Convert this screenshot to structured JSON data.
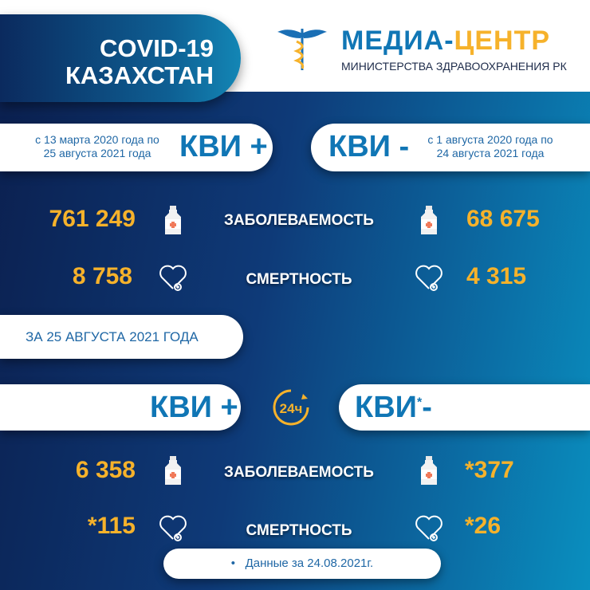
{
  "header": {
    "line1": "COVID-19",
    "line2": "КАЗАХСТАН"
  },
  "logo": {
    "title_part1": "МЕДИА-",
    "title_part2": "ЦЕНТР",
    "subtitle": "МИНИСТЕРСТВА ЗДРАВООХРАНЕНИЯ РК"
  },
  "cumulative": {
    "left": {
      "period_line1": "с 13 марта 2020 года по",
      "period_line2": "25 августа 2021 года",
      "label": "КВИ +"
    },
    "right": {
      "label": "КВИ -",
      "period_line1": "с 1 августа 2020 года по",
      "period_line2": "24 августа 2021 года"
    },
    "incidence_label": "ЗАБОЛЕВАЕМОСТЬ",
    "mortality_label": "СМЕРТНОСТЬ",
    "incidence_left": "761 249",
    "incidence_right": "68 675",
    "mortality_left": "8 758",
    "mortality_right": "4 315"
  },
  "daily": {
    "date_label": "ЗА 25 АВГУСТА 2021 ГОДА",
    "left_label": "КВИ +",
    "right_label": "КВИ",
    "right_sign": "-",
    "right_asterisk": "*",
    "badge": "24ч",
    "incidence_label": "ЗАБОЛЕВАЕМОСТЬ",
    "mortality_label": "СМЕРТНОСТЬ",
    "incidence_left": "6 358",
    "incidence_right": "*377",
    "mortality_left": "*115",
    "mortality_right": "*26"
  },
  "footnote": "Данные за 24.08.2021г.",
  "colors": {
    "accent": "#f6b22b",
    "brand_blue": "#1076b5",
    "navy": "#0b1f4e"
  }
}
